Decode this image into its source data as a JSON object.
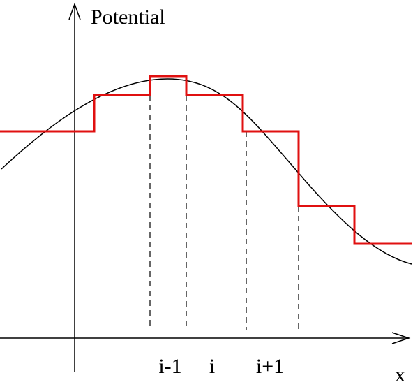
{
  "y_axis_label": "Potential",
  "x_axis_label": "x",
  "cell_labels": [
    "i-1",
    "i",
    "i+1"
  ]
}
